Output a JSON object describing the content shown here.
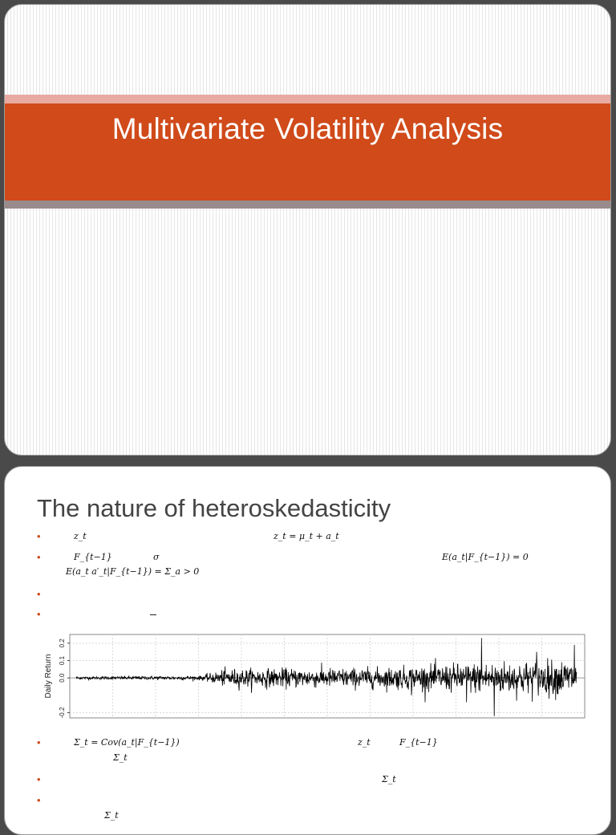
{
  "slide1": {
    "title": "Multivariate Volatility Analysis"
  },
  "slide2": {
    "title": "The nature of heteroskedasticity",
    "bullet_symbol": "•",
    "math": {
      "b1_left": "z_t",
      "b1_right": "z_t = μ_t + a_t",
      "b2_left": "F_{t−1}",
      "b2_mid": "σ",
      "b2_right": "E(a_t|F_{t−1}) = 0",
      "b2_line2": "E(a_t a′_t|F_{t−1}) = Σ_a > 0",
      "b5_left": "Σ_t = Cov(a_t|F_{t−1})",
      "b5_mid1": "z_t",
      "b5_mid2": "F_{t−1}",
      "b5_line2": "Σ_t",
      "b6_right": "Σ_t",
      "b7_line2": "Σ_t"
    }
  },
  "chart_data": {
    "type": "line",
    "ylabel": "Daily Return",
    "ylim": [
      -0.23,
      0.25
    ],
    "yticks": [
      -0.2,
      0.0,
      0.1,
      0.2
    ],
    "ytick_labels": [
      "-0.2",
      "0.0",
      "0.1",
      "0.2"
    ],
    "grid": true,
    "n_points": 1500,
    "volatility_envelope": [
      {
        "t": 0,
        "sd": 0.004
      },
      {
        "t": 0.25,
        "sd": 0.006
      },
      {
        "t": 0.3,
        "sd": 0.025
      },
      {
        "t": 0.6,
        "sd": 0.028
      },
      {
        "t": 0.7,
        "sd": 0.035
      },
      {
        "t": 0.85,
        "sd": 0.045
      },
      {
        "t": 1.0,
        "sd": 0.05
      }
    ],
    "spikes": [
      {
        "t": 0.81,
        "value": 0.23
      },
      {
        "t": 0.835,
        "value": -0.22
      },
      {
        "t": 0.78,
        "value": -0.14
      },
      {
        "t": 0.995,
        "value": 0.19
      },
      {
        "t": 0.92,
        "value": 0.15
      },
      {
        "t": 0.67,
        "value": -0.1
      }
    ],
    "line_color": "#000000",
    "grid_color": "#d9d9d9"
  }
}
